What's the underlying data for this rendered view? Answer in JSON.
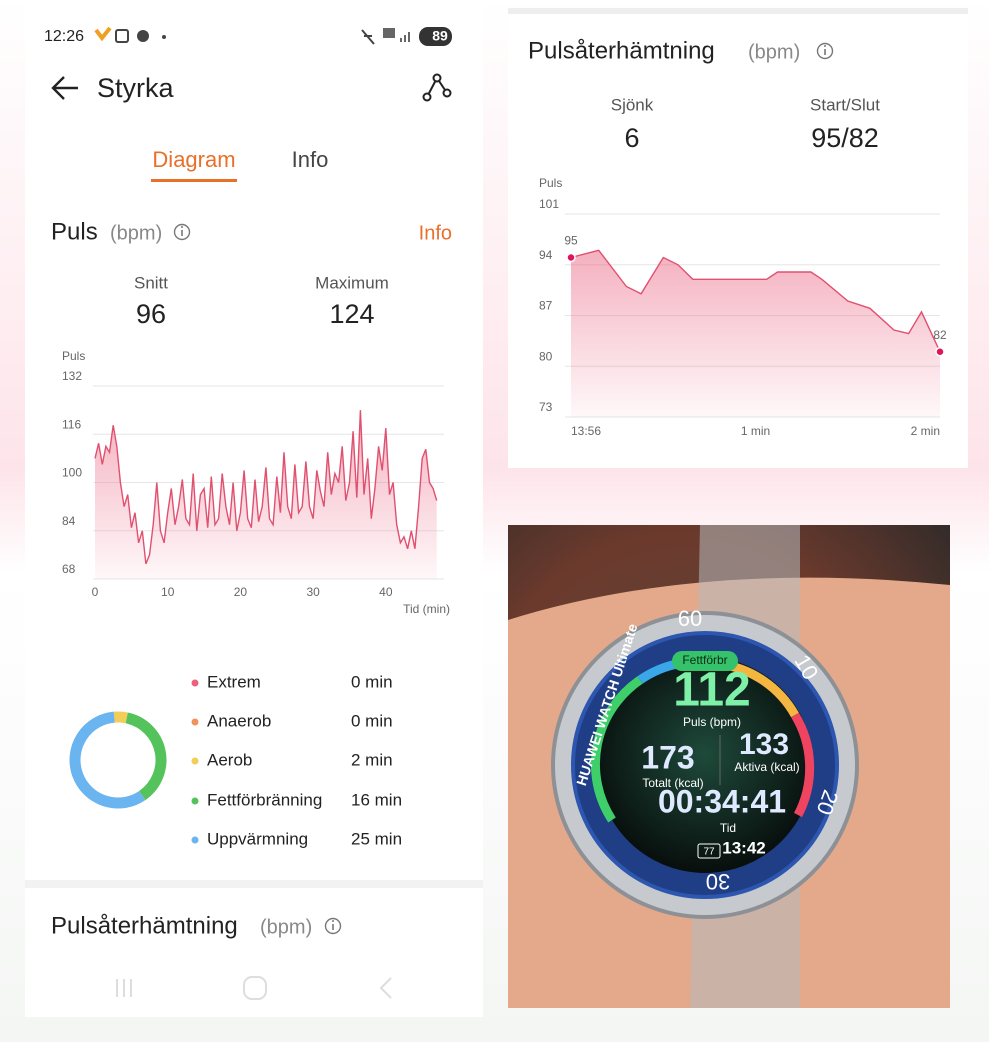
{
  "status_bar": {
    "time": "12:26",
    "battery": "89"
  },
  "header": {
    "title": "Styrka"
  },
  "tabs": [
    "Diagram",
    "Info"
  ],
  "heart_rate": {
    "title": "Puls",
    "unit": "(bpm)",
    "info_link": "Info",
    "stats": [
      {
        "label": "Snitt",
        "value": 96
      },
      {
        "label": "Maximum",
        "value": 124
      }
    ]
  },
  "left_footer": {
    "title": "Pulsåterhämtning",
    "unit": "(bpm)"
  },
  "recovery": {
    "title": "Pulsåterhämtning",
    "unit": "(bpm)",
    "stats": [
      {
        "label": "Sjönk",
        "value": 6
      },
      {
        "label": "Start/Slut",
        "value": "95/82"
      }
    ]
  },
  "chart_data": [
    {
      "type": "line",
      "y_label": "Puls",
      "x_label": "Tid (min)",
      "color": "#e0506f",
      "grid": true,
      "x": [
        0,
        0.5,
        1,
        1.5,
        2,
        2.5,
        3,
        3.5,
        4,
        4.5,
        5,
        5.5,
        6,
        6.5,
        7,
        7.5,
        8,
        8.5,
        9,
        9.5,
        10,
        10.5,
        11,
        11.5,
        12,
        12.5,
        13,
        13.5,
        14,
        14.5,
        15,
        15.5,
        16,
        16.5,
        17,
        17.5,
        18,
        18.5,
        19,
        19.5,
        20,
        20.5,
        21,
        21.5,
        22,
        22.5,
        23,
        23.5,
        24,
        24.5,
        25,
        25.5,
        26,
        26.5,
        27,
        27.5,
        28,
        28.5,
        29,
        29.5,
        30,
        30.5,
        31,
        31.5,
        32,
        32.5,
        33,
        33.5,
        34,
        34.5,
        35,
        35.5,
        36,
        36.5,
        37,
        37.5,
        38,
        38.5,
        39,
        39.5,
        40,
        40.5,
        41,
        41.5,
        42,
        42.5,
        43,
        43.5,
        44,
        44.5,
        45,
        45.5,
        46,
        46.5,
        47
      ],
      "values": [
        108,
        113,
        106,
        112,
        110,
        119,
        112,
        100,
        92,
        96,
        85,
        90,
        80,
        84,
        73,
        76,
        86,
        100,
        84,
        80,
        90,
        98,
        86,
        92,
        101,
        88,
        86,
        103,
        84,
        96,
        98,
        85,
        102,
        86,
        88,
        103,
        92,
        86,
        100,
        84,
        90,
        104,
        88,
        85,
        101,
        87,
        92,
        105,
        88,
        86,
        102,
        90,
        110,
        92,
        88,
        106,
        90,
        92,
        107,
        92,
        88,
        104,
        97,
        92,
        110,
        96,
        103,
        100,
        112,
        94,
        100,
        117,
        95,
        124,
        96,
        108,
        88,
        98,
        112,
        104,
        118,
        96,
        100,
        86,
        80,
        82,
        78,
        84,
        78,
        92,
        108,
        111,
        100,
        98,
        94
      ],
      "xlim": [
        0,
        48
      ],
      "ylim": [
        68,
        132
      ],
      "xticks": [
        0,
        10,
        20,
        30,
        40
      ],
      "yticks": [
        68,
        84,
        100,
        116,
        132
      ]
    },
    {
      "type": "line",
      "y_label": "Puls",
      "color": "#e0506f",
      "grid": true,
      "x": [
        0,
        0.15,
        0.3,
        0.38,
        0.5,
        0.58,
        0.66,
        0.86,
        1.06,
        1.12,
        1.3,
        1.36,
        1.5,
        1.62,
        1.75,
        1.83,
        1.9,
        2
      ],
      "values": [
        95,
        96,
        91,
        90,
        95,
        94,
        92,
        92,
        92,
        93,
        93,
        92,
        89,
        88,
        85,
        84.5,
        87.5,
        82
      ],
      "xlim": [
        0,
        2
      ],
      "ylim": [
        73,
        101
      ],
      "xticks": [
        {
          "value": 0,
          "label": "13:56"
        },
        {
          "value": 1,
          "label": "1 min"
        },
        {
          "value": 2,
          "label": "2 min"
        }
      ],
      "yticks": [
        73,
        80,
        87,
        94,
        101
      ]
    },
    {
      "type": "pie",
      "categories": [
        "Extrem",
        "Anaerob",
        "Aerob",
        "Fettförbränning",
        "Uppvärmning"
      ],
      "values": [
        0,
        0,
        2,
        16,
        25
      ],
      "value_labels": [
        "0 min",
        "0 min",
        "2 min",
        "16 min",
        "25 min"
      ],
      "colors": [
        "#e8627c",
        "#ef935c",
        "#f2cd58",
        "#55c35c",
        "#6ab4f0"
      ]
    }
  ],
  "watch": {
    "brand": "HUAWEI WATCH Ultimate",
    "mode": "Fettförbr",
    "heart_rate": 112,
    "heart_rate_label": "Puls (bpm)",
    "total_kcal": 173,
    "total_label": "Totalt (kcal)",
    "active_kcal": 133,
    "active_label": "Aktiva (kcal)",
    "duration": "00:34:41",
    "duration_label": "Tid",
    "battery": 77,
    "clock": "13:42",
    "bezel": [
      60,
      10,
      20,
      30
    ]
  }
}
